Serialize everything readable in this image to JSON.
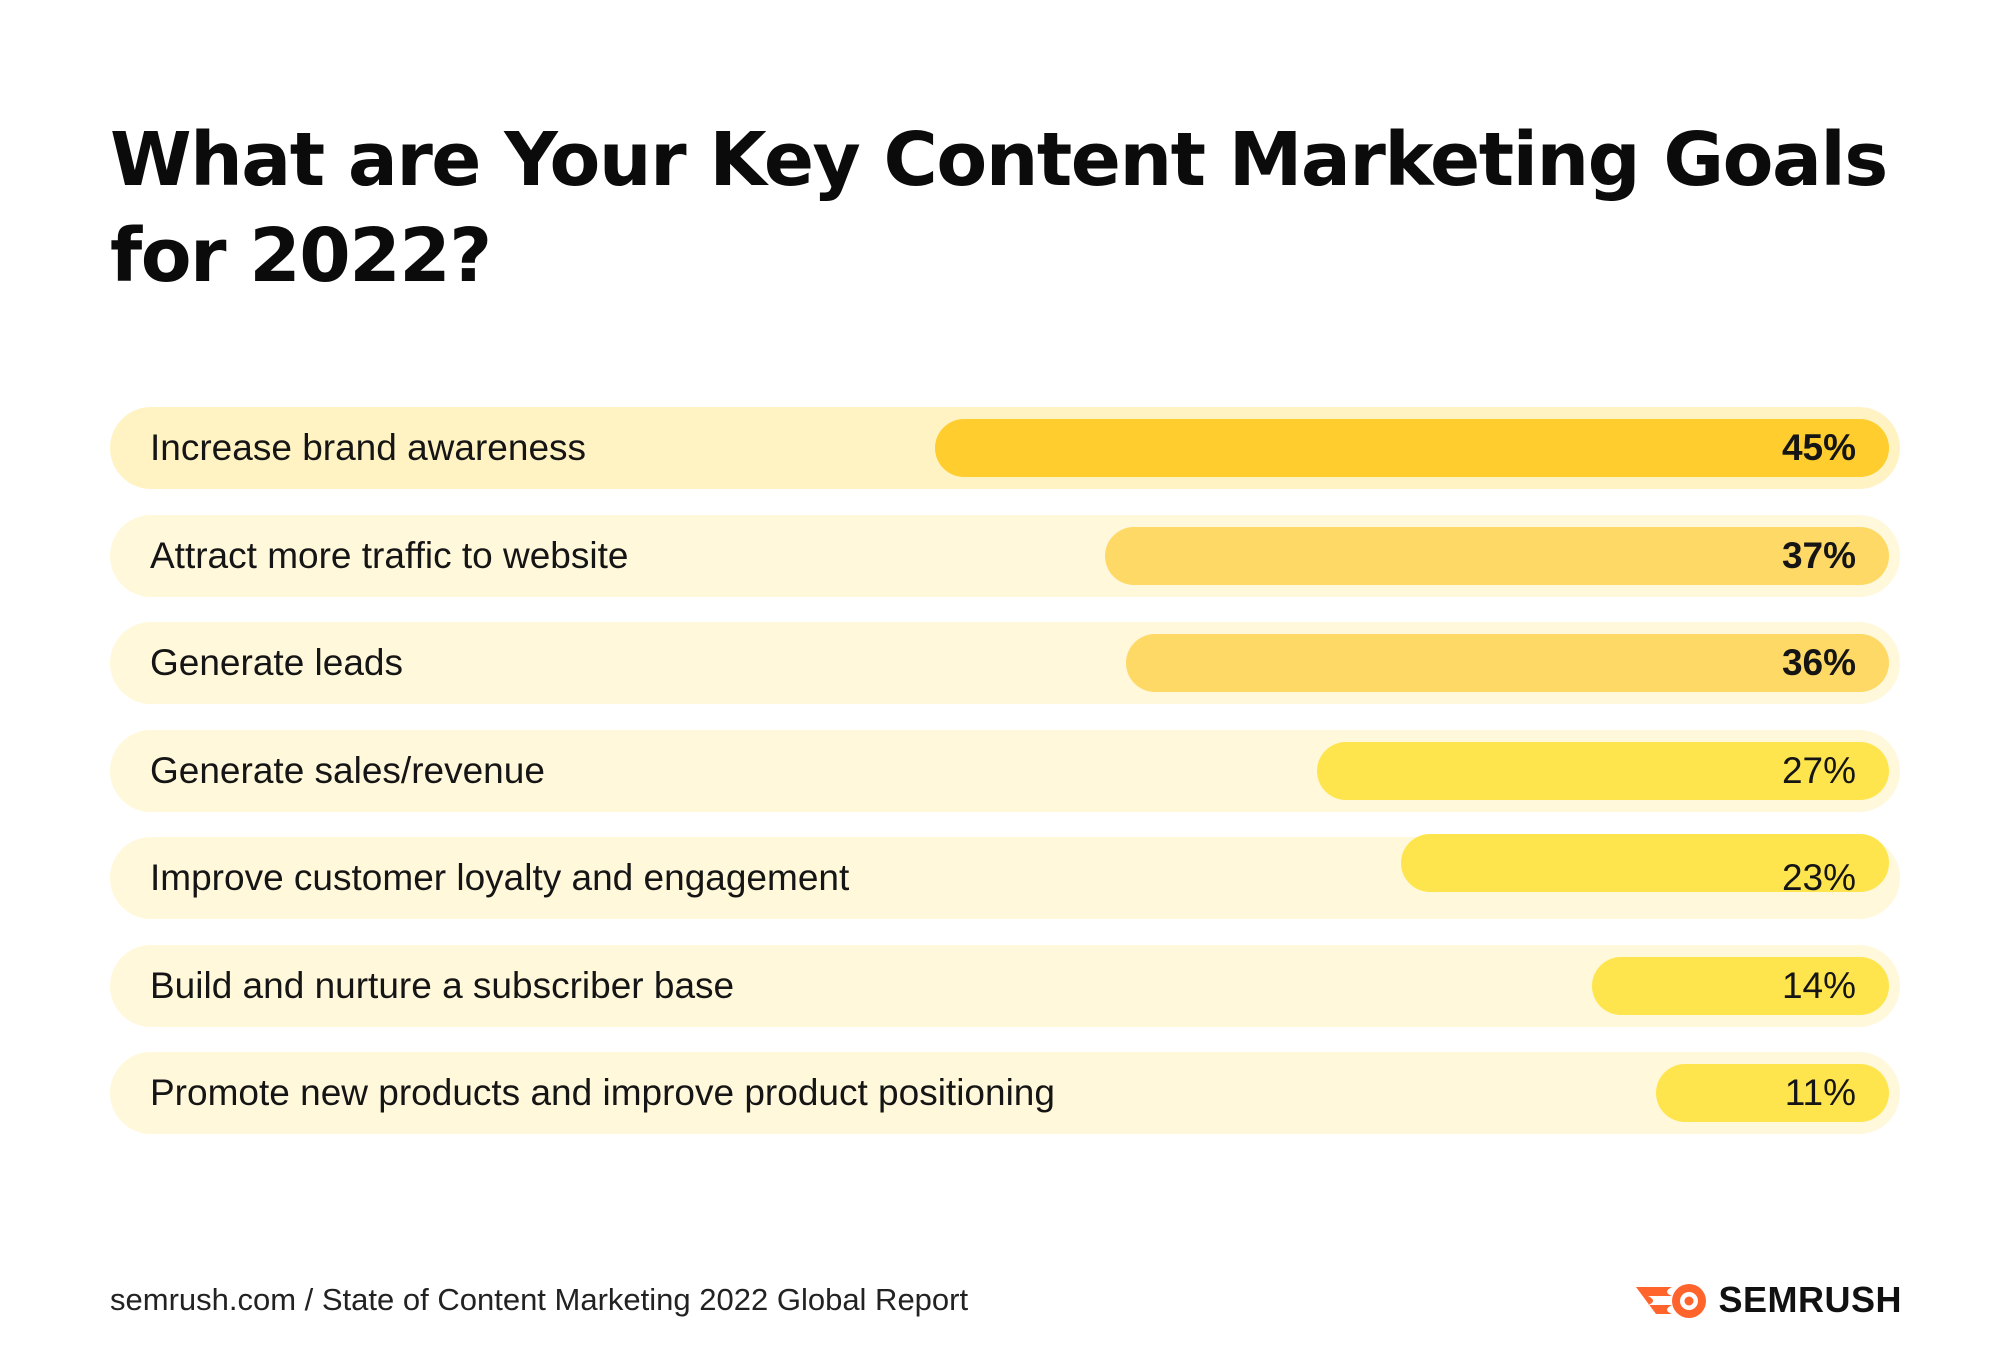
{
  "title": "What are Your Key Content Marketing Goals for 2022?",
  "chart_data": {
    "type": "bar",
    "orientation": "horizontal",
    "title": "What are Your Key Content Marketing Goals for 2022?",
    "categories": [
      "Increase brand awareness",
      "Attract more traffic to website",
      "Generate leads",
      "Generate sales/revenue",
      "Improve customer loyalty and engagement",
      "Build and nurture a subscriber base",
      "Promote new products and improve product positioning"
    ],
    "values": [
      45,
      37,
      36,
      27,
      23,
      14,
      11
    ],
    "value_labels": [
      "45%",
      "37%",
      "36%",
      "27%",
      "23%",
      "14%",
      "11%"
    ],
    "unit": "%",
    "xlim": [
      0,
      100
    ],
    "grid": false,
    "legend": "none",
    "colors": {
      "bar_top": "#ffcd2d",
      "bar_mid": "#ffd966",
      "bar_low": "#ffe54d",
      "row_bg_top": "#fff3c4",
      "row_bg": "#fff8da"
    }
  },
  "footer": {
    "source": "semrush.com / State of Content Marketing 2022 Global Report",
    "logo_text": "SEMRUSH",
    "logo_icon": "semrush-fire-icon"
  }
}
